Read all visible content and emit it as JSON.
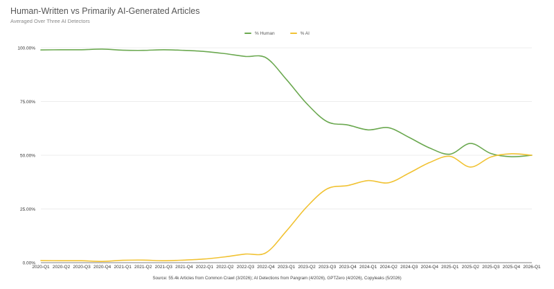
{
  "title": "Human-Written vs Primarily AI-Generated Articles",
  "subtitle": "Averaged Over Three AI Detectors",
  "source": "Source: 55.4k Articles from Common Crawl (3/2026); AI Detections from Pangram (4/2026), GPTZero (4/2026), Copyleaks (5/2026)",
  "chart_data": {
    "type": "line",
    "legend_position": "top-center",
    "grid": true,
    "ylim": [
      0,
      100
    ],
    "y_ticks": [
      {
        "value": 0,
        "label": "0.00%"
      },
      {
        "value": 25,
        "label": "25.00%"
      },
      {
        "value": 50,
        "label": "50.00%"
      },
      {
        "value": 75,
        "label": "75.00%"
      },
      {
        "value": 100,
        "label": "100.00%"
      }
    ],
    "categories": [
      "2020-Q1",
      "2020-Q2",
      "2020-Q3",
      "2020-Q4",
      "2021-Q1",
      "2021-Q2",
      "2021-Q3",
      "2021-Q4",
      "2022-Q1",
      "2022-Q2",
      "2022-Q3",
      "2022-Q4",
      "2023-Q1",
      "2023-Q2",
      "2023-Q3",
      "2023-Q4",
      "2024-Q1",
      "2024-Q2",
      "2024-Q3",
      "2024-Q4",
      "2025-Q1",
      "2025-Q2",
      "2025-Q3",
      "2025-Q4",
      "2026-Q1"
    ],
    "series": [
      {
        "name": "% Human",
        "color": "#6aa84f",
        "values": [
          99.0,
          99.1,
          99.1,
          99.4,
          98.9,
          98.8,
          99.1,
          98.8,
          98.3,
          97.3,
          96.0,
          95.4,
          85.3,
          74.0,
          65.6,
          64.1,
          61.8,
          62.8,
          58.3,
          53.4,
          50.5,
          55.5,
          50.8,
          49.3,
          50.0
        ]
      },
      {
        "name": "% AI",
        "color": "#f1c232",
        "values": [
          1.0,
          0.9,
          0.9,
          0.6,
          1.1,
          1.2,
          0.9,
          1.2,
          1.7,
          2.7,
          4.0,
          4.6,
          14.7,
          26.0,
          34.4,
          35.9,
          38.2,
          37.2,
          41.7,
          46.6,
          49.5,
          44.5,
          49.2,
          50.7,
          50.0
        ]
      }
    ]
  }
}
